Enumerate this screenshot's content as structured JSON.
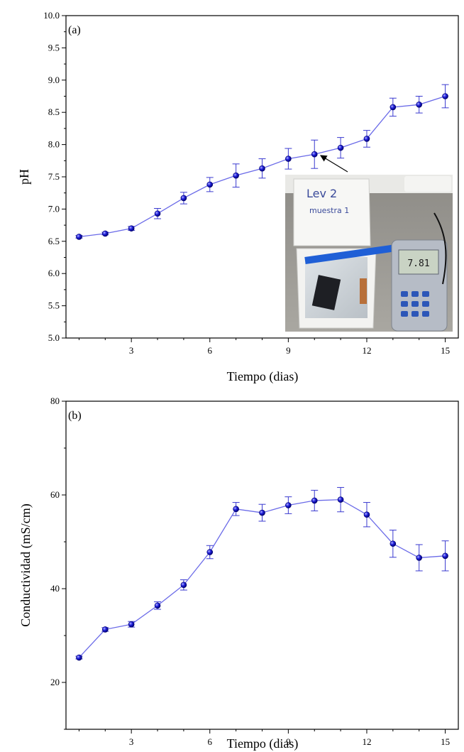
{
  "chart_data": [
    {
      "type": "line",
      "panel_label": "(a)",
      "title": "",
      "xlabel": "Tiempo (dias)",
      "ylabel": "pH",
      "xlim": [
        0.5,
        15.5
      ],
      "ylim": [
        5.0,
        10.0
      ],
      "xticks": [
        3,
        6,
        9,
        12,
        15
      ],
      "yticks": [
        5.0,
        5.5,
        6.0,
        6.5,
        7.0,
        7.5,
        8.0,
        8.5,
        9.0,
        9.5,
        10.0
      ],
      "x": [
        1,
        2,
        3,
        4,
        5,
        6,
        7,
        8,
        9,
        10,
        11,
        12,
        13,
        14,
        15
      ],
      "series": [
        {
          "values": [
            6.57,
            6.62,
            6.7,
            6.93,
            7.17,
            7.38,
            7.52,
            7.63,
            7.78,
            7.85,
            7.95,
            8.09,
            8.58,
            8.62,
            8.75
          ],
          "errors": [
            0.02,
            0.02,
            0.03,
            0.08,
            0.09,
            0.11,
            0.18,
            0.15,
            0.16,
            0.22,
            0.16,
            0.13,
            0.14,
            0.13,
            0.18
          ],
          "color": "#1c1cd0"
        }
      ],
      "annotation": {
        "type": "photo-inset",
        "arrow_to_x": 10,
        "arrow_to_y": 7.85,
        "photo_text_lines": [
          "Lev 2",
          "muestra 1"
        ],
        "meter_reading": "7.81"
      },
      "grid": false
    },
    {
      "type": "line",
      "panel_label": "(b)",
      "title": "",
      "xlabel": "Tiempo (dias)",
      "ylabel": "Conductividad  (mS/cm)",
      "xlim": [
        0.5,
        15.5
      ],
      "ylim": [
        10,
        80
      ],
      "xticks": [
        3,
        6,
        9,
        12,
        15
      ],
      "yticks": [
        20,
        40,
        60,
        80
      ],
      "x": [
        1,
        2,
        3,
        4,
        5,
        6,
        7,
        8,
        9,
        10,
        11,
        12,
        13,
        14,
        15
      ],
      "series": [
        {
          "values": [
            25.3,
            31.3,
            32.4,
            36.4,
            40.8,
            47.8,
            57.0,
            56.2,
            57.8,
            58.8,
            59.0,
            55.8,
            49.6,
            46.6,
            47.0
          ],
          "errors": [
            0.3,
            0.4,
            0.6,
            0.8,
            1.1,
            1.4,
            1.4,
            1.8,
            1.8,
            2.2,
            2.6,
            2.6,
            2.9,
            2.8,
            3.2
          ],
          "color": "#1c1cd0"
        }
      ],
      "grid": false
    }
  ]
}
